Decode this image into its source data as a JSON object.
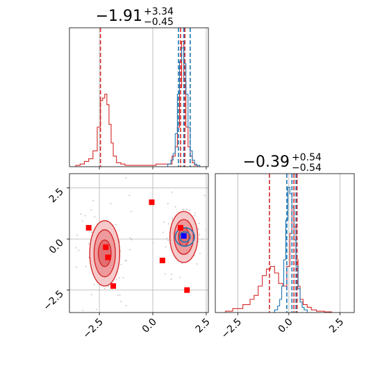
{
  "chart_data": {
    "type": "corner",
    "colors": {
      "red": "#d62728",
      "red_fill": "#f0a0a2",
      "blue": "#1f77b4",
      "grid": "#b0b0b0",
      "marker_blue": "#0000ff",
      "marker_red": "#ff0000"
    },
    "params": [
      {
        "title_main": "−1.91",
        "title_sup": "+3.34",
        "title_sub": "−0.45",
        "range": [
          -3.9,
          2.6
        ]
      },
      {
        "title_main": "−0.39",
        "title_sup": "+0.54",
        "title_sub": "−0.54",
        "range": [
          -3.6,
          3.2
        ]
      }
    ],
    "x_ticks": [
      -2.5,
      0.0,
      2.5
    ],
    "x_tick_labels": [
      "−2.5",
      "0.0",
      "2.5"
    ],
    "y_ticks": [
      2.5,
      0.0,
      -2.5
    ],
    "y_tick_labels": [
      "2.5",
      "0.0",
      "−2.5"
    ],
    "marginal_1": {
      "red_lines": [
        -2.45,
        1.3,
        1.5
      ],
      "blue_lines": [
        1.2,
        1.45,
        1.75
      ],
      "red_hist": {
        "x": [
          -3.5,
          -3.3,
          -3.1,
          -2.9,
          -2.7,
          -2.5,
          -2.4,
          -2.3,
          -2.2,
          -2.1,
          -2.0,
          -1.9,
          -1.8,
          -1.6,
          -1.4,
          -1.2,
          -0.5,
          0.8,
          1.0,
          1.1,
          1.2,
          1.3,
          1.4,
          1.5,
          1.6,
          1.7,
          1.8,
          1.9,
          2.0
        ],
        "h": [
          0.01,
          0.02,
          0.04,
          0.06,
          0.12,
          0.3,
          0.5,
          0.52,
          0.55,
          0.47,
          0.32,
          0.18,
          0.08,
          0.03,
          0.02,
          0.01,
          0.01,
          0.02,
          0.08,
          0.15,
          0.3,
          0.6,
          0.95,
          0.65,
          0.3,
          0.15,
          0.08,
          0.03,
          0.01
        ]
      },
      "blue_hist": {
        "x": [
          0.8,
          0.9,
          1.0,
          1.1,
          1.2,
          1.3,
          1.4,
          1.5,
          1.6,
          1.7,
          1.8,
          1.9,
          2.0,
          2.1
        ],
        "h": [
          0.02,
          0.05,
          0.1,
          0.25,
          0.55,
          0.8,
          0.9,
          0.78,
          0.55,
          0.3,
          0.12,
          0.05,
          0.02,
          0.01
        ]
      }
    },
    "marginal_2": {
      "red_lines": [
        -0.95,
        0.25,
        0.4
      ],
      "blue_lines": [
        -0.1,
        0.15,
        0.35
      ],
      "red_hist": {
        "x": [
          -3.0,
          -2.5,
          -2.0,
          -1.8,
          -1.6,
          -1.4,
          -1.2,
          -1.0,
          -0.8,
          -0.6,
          -0.4,
          -0.2,
          0.0,
          0.1,
          0.2,
          0.3,
          0.4,
          0.5,
          0.6,
          0.8,
          1.0,
          1.2,
          1.5,
          2.0
        ],
        "h": [
          0.01,
          0.03,
          0.06,
          0.1,
          0.13,
          0.2,
          0.28,
          0.33,
          0.35,
          0.3,
          0.22,
          0.2,
          0.35,
          0.6,
          0.8,
          0.65,
          0.4,
          0.2,
          0.1,
          0.06,
          0.04,
          0.02,
          0.01,
          0.005
        ]
      },
      "blue_hist": {
        "x": [
          -0.6,
          -0.5,
          -0.4,
          -0.3,
          -0.2,
          -0.1,
          0.0,
          0.1,
          0.2,
          0.3,
          0.4,
          0.5,
          0.6,
          0.7,
          0.8
        ],
        "h": [
          0.02,
          0.05,
          0.1,
          0.2,
          0.4,
          0.7,
          0.95,
          0.9,
          0.8,
          0.55,
          0.35,
          0.18,
          0.08,
          0.04,
          0.02
        ]
      }
    },
    "joint": {
      "red_contours": [
        {
          "cx": -2.25,
          "cy": -0.7,
          "rx": [
            0.7,
            0.5,
            0.3
          ],
          "ry": [
            1.6,
            1.15,
            0.65
          ]
        },
        {
          "cx": 1.45,
          "cy": 0.1,
          "rx": [
            0.65,
            0.45,
            0.25
          ],
          "ry": [
            1.25,
            0.85,
            0.45
          ]
        }
      ],
      "blue_contour": {
        "cx": 1.5,
        "cy": 0.1,
        "rx": [
          0.45,
          0.25
        ],
        "ry": [
          0.45,
          0.25
        ]
      },
      "red_markers": [
        {
          "x": -3.0,
          "y": 0.55
        },
        {
          "x": -2.2,
          "y": -0.4
        },
        {
          "x": -2.1,
          "y": -0.9
        },
        {
          "x": -1.85,
          "y": -2.3
        },
        {
          "x": -0.05,
          "y": 1.8
        },
        {
          "x": 0.45,
          "y": -1.05
        },
        {
          "x": 1.3,
          "y": 0.55
        },
        {
          "x": 1.6,
          "y": -2.5
        }
      ],
      "blue_marker": {
        "x": 1.45,
        "y": 0.15
      }
    }
  }
}
